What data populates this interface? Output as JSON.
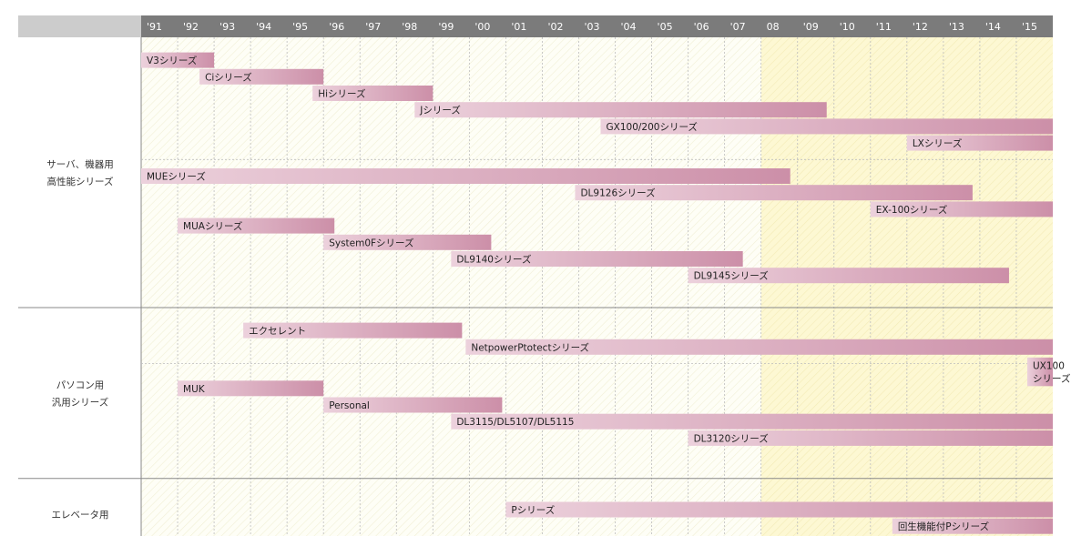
{
  "chart_data": {
    "type": "gantt",
    "title": "",
    "x_ticks": [
      "'91",
      "'92",
      "'93",
      "'94",
      "'95",
      "'96",
      "'97",
      "'98",
      "'99",
      "'00",
      "'01",
      "'02",
      "'03",
      "'04",
      "'05",
      "'06",
      "'07",
      "08",
      "'09",
      "'10",
      "'11",
      "'12",
      "'13",
      "'14",
      "'15"
    ],
    "x_range": [
      1991,
      2016
    ],
    "highlight_from": 2008,
    "colors": {
      "header_bg": "#7b7b7b",
      "header_corner": "#cccccc",
      "bar_light": "#ecd1dc",
      "bar_dark": "#cc8fa8",
      "period_old_bg": "#fefef6",
      "period_new_bg": "#fdf8d3",
      "grid": "#bdbdbd",
      "divider": "#888888"
    },
    "groups": [
      {
        "label_lines": [
          "サーバ、機器用",
          "高性能シリーズ"
        ],
        "rows": 15,
        "separators_after_row": [
          6
        ],
        "bars": [
          {
            "label": "V3シリーズ",
            "start": 1991,
            "end": 1993.0,
            "row": 0
          },
          {
            "label": "Ciシリーズ",
            "start": 1992.6,
            "end": 1996.0,
            "row": 1
          },
          {
            "label": "Hiシリーズ",
            "start": 1995.7,
            "end": 1999.0,
            "row": 2
          },
          {
            "label": "Jシリーズ",
            "start": 1998.5,
            "end": 2009.8,
            "row": 3
          },
          {
            "label": "GX100/200シリーズ",
            "start": 2003.6,
            "end": 2016,
            "row": 4
          },
          {
            "label": "LXシリーズ",
            "start": 2012.0,
            "end": 2016,
            "row": 5
          },
          {
            "label": "MUEシリーズ",
            "start": 1991,
            "end": 2008.8,
            "row": 7
          },
          {
            "label": "DL9126シリーズ",
            "start": 2002.9,
            "end": 2013.8,
            "row": 8
          },
          {
            "label": "EX-100シリーズ",
            "start": 2011.0,
            "end": 2016,
            "row": 9
          },
          {
            "label": "MUAシリーズ",
            "start": 1992.0,
            "end": 1996.3,
            "row": 10
          },
          {
            "label": "System0Fシリーズ",
            "start": 1996.0,
            "end": 2000.6,
            "row": 11
          },
          {
            "label": "DL9140シリーズ",
            "start": 1999.5,
            "end": 2007.5,
            "row": 12
          },
          {
            "label": "DL9145シリーズ",
            "start": 2006.0,
            "end": 2014.8,
            "row": 13
          }
        ]
      },
      {
        "label_lines": [
          "パソコン用",
          "汎用シリーズ"
        ],
        "rows": 9,
        "separators_after_row": [
          2
        ],
        "bars": [
          {
            "label": "エクセレント",
            "start": 1993.8,
            "end": 1999.8,
            "row": 0
          },
          {
            "label": "NetpowerPtotectシリーズ",
            "start": 1999.9,
            "end": 2016,
            "row": 1
          },
          {
            "label_lines": [
              "UX100",
              "シリーズ"
            ],
            "start": 2015.3,
            "end": 2016,
            "row": 2.5
          },
          {
            "label": "MUK",
            "start": 1992.0,
            "end": 1996.0,
            "row": 3.5
          },
          {
            "label": "Personal",
            "start": 1996.0,
            "end": 2000.9,
            "row": 4.5
          },
          {
            "label": "DL3115/DL5107/DL5115",
            "start": 1999.5,
            "end": 2016,
            "row": 5.5
          },
          {
            "label": "DL3120シリーズ",
            "start": 2006.0,
            "end": 2016,
            "row": 6.5
          }
        ]
      },
      {
        "label_lines": [
          "エレベータ用"
        ],
        "rows": 3,
        "separators_after_row": [],
        "bars": [
          {
            "label": "Pシリーズ",
            "start": 2001.0,
            "end": 2016,
            "row": 0.5
          },
          {
            "label": "回生機能付Pシリーズ",
            "start": 2011.6,
            "end": 2016,
            "row": 1.5
          }
        ]
      }
    ]
  }
}
